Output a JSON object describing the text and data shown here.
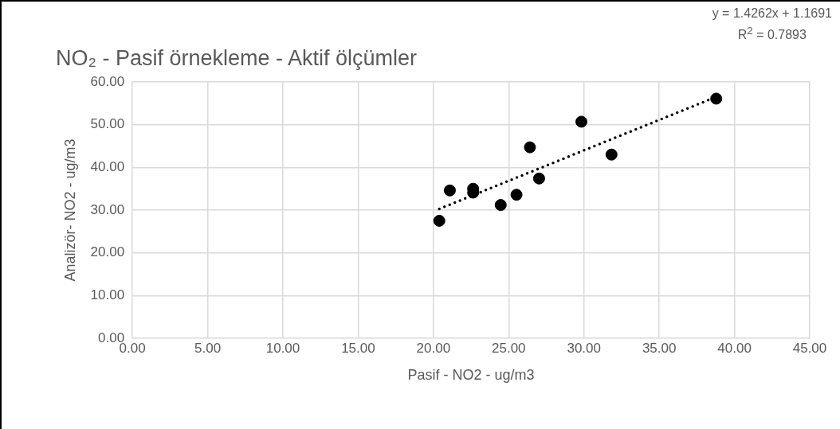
{
  "chart_data": {
    "type": "scatter",
    "title": "NO₂ - Pasif örnekleme - Aktif ölçümler",
    "xlabel": "Pasif - NO2 - ug/m3",
    "ylabel": "Analizör- NO2 - ug/m3",
    "annotations": [
      "y = 1.4262x + 1.1691",
      "R$^{2}$ = 0.7893"
    ],
    "series": [
      {
        "type": "scatter",
        "color": "#000000",
        "x": [
          20.39,
          21.09,
          22.64,
          22.64,
          24.47,
          25.52,
          26.41,
          27.02,
          29.83,
          31.83,
          38.79
        ],
        "values": [
          27.5,
          34.6,
          35.0,
          34.1,
          31.2,
          33.6,
          44.7,
          37.4,
          50.7,
          43.0,
          56.1
        ],
        "marker": "circle"
      },
      {
        "type": "line",
        "color": "#000000",
        "x": [
          20.39,
          38.79
        ],
        "values": [
          30.3,
          56.5
        ],
        "line_style": "dotted",
        "marker": "none"
      }
    ],
    "xlim": [
      0,
      45
    ],
    "xticks": [
      {
        "value": 0,
        "label": "0.00"
      },
      {
        "value": 5,
        "label": "5.00"
      },
      {
        "value": 10,
        "label": "10.00"
      },
      {
        "value": 15,
        "label": "15.00"
      },
      {
        "value": 20,
        "label": "20.00"
      },
      {
        "value": 25,
        "label": "25.00"
      },
      {
        "value": 30,
        "label": "30.00"
      },
      {
        "value": 35,
        "label": "35.00"
      },
      {
        "value": 40,
        "label": "40.00"
      },
      {
        "value": 45,
        "label": "45.00"
      }
    ],
    "ylim": [
      0,
      60
    ],
    "yticks": [
      {
        "value": 0,
        "label": "0.00"
      },
      {
        "value": 10,
        "label": "10.00"
      },
      {
        "value": 20,
        "label": "20.00"
      },
      {
        "value": 30,
        "label": "30.00"
      },
      {
        "value": 40,
        "label": "40.00"
      },
      {
        "value": 50,
        "label": "50.00"
      },
      {
        "value": 60,
        "label": "60.00"
      }
    ],
    "grid": true,
    "legend": false
  }
}
